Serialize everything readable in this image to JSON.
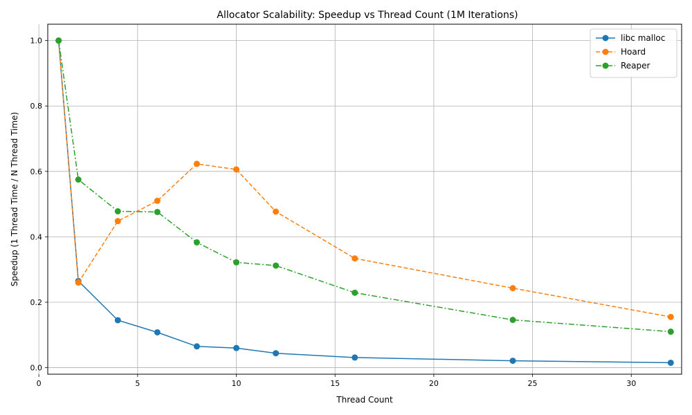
{
  "chart_data": {
    "type": "line",
    "title": "Allocator Scalability: Speedup vs Thread Count (1M Iterations)",
    "xlabel": "Thread Count",
    "ylabel": "Speedup (1 Thread Time / N Thread Time)",
    "x": [
      1,
      2,
      4,
      6,
      8,
      10,
      12,
      16,
      24,
      32
    ],
    "xlim": [
      0.45,
      32.55
    ],
    "ylim": [
      -0.02,
      1.05
    ],
    "xticks": [
      0,
      5,
      10,
      15,
      20,
      25,
      30
    ],
    "yticks": [
      0.0,
      0.2,
      0.4,
      0.6,
      0.8,
      1.0
    ],
    "xtick_labels": [
      "0",
      "5",
      "10",
      "15",
      "20",
      "25",
      "30"
    ],
    "ytick_labels": [
      "0.0",
      "0.2",
      "0.4",
      "0.6",
      "0.8",
      "1.0"
    ],
    "grid": true,
    "legend_position": "top-right",
    "series": [
      {
        "name": "libc malloc",
        "color": "#1f77b4",
        "dash": "solid",
        "values": [
          1.0,
          0.265,
          0.145,
          0.108,
          0.065,
          0.06,
          0.044,
          0.031,
          0.021,
          0.015
        ]
      },
      {
        "name": "Hoard",
        "color": "#ff7f0e",
        "dash": "dashed",
        "values": [
          1.0,
          0.26,
          0.448,
          0.51,
          0.623,
          0.606,
          0.477,
          0.334,
          0.243,
          0.155
        ]
      },
      {
        "name": "Reaper",
        "color": "#2ca02c",
        "dash": "dashdot",
        "values": [
          1.0,
          0.575,
          0.478,
          0.476,
          0.383,
          0.322,
          0.312,
          0.229,
          0.146,
          0.11
        ]
      }
    ]
  }
}
